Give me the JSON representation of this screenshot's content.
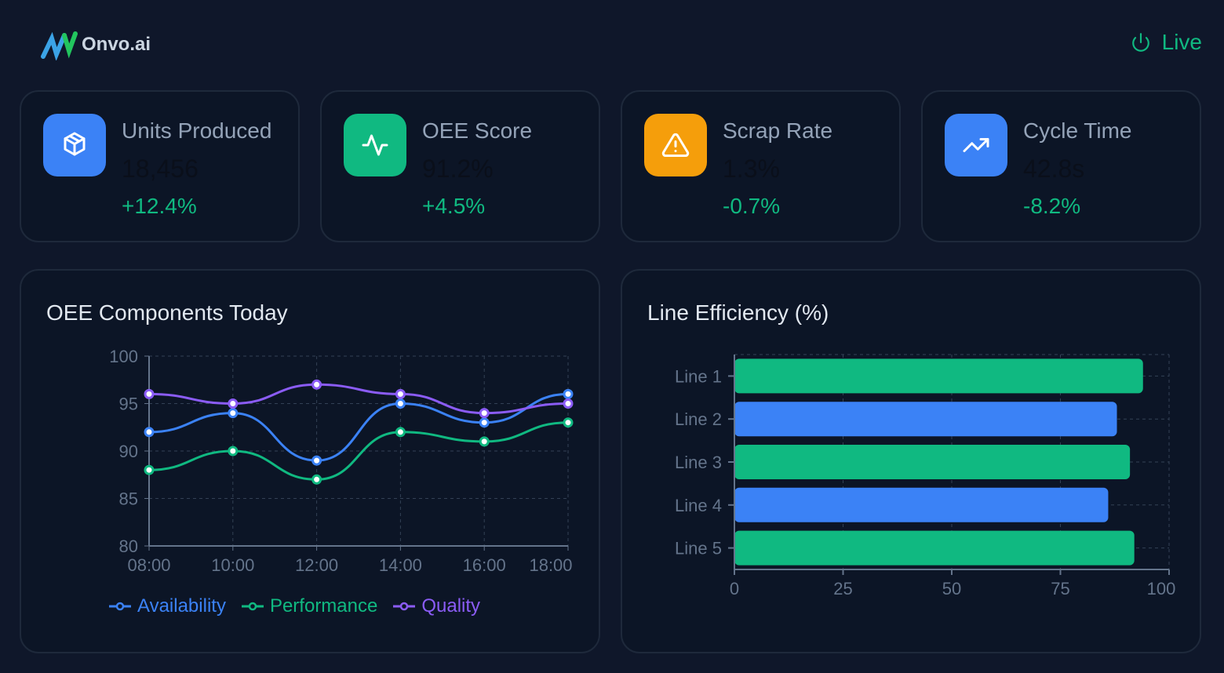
{
  "brand": {
    "name": "Onvo.ai"
  },
  "status": {
    "label": "Live",
    "icon": "power-icon"
  },
  "kpis": [
    {
      "label": "Units Produced",
      "value": "18,456",
      "change": "+12.4%",
      "icon": "box-icon",
      "color": "#3b82f6"
    },
    {
      "label": "OEE Score",
      "value": "91.2%",
      "change": "+4.5%",
      "icon": "activity-icon",
      "color": "#10b981"
    },
    {
      "label": "Scrap Rate",
      "value": "1.3%",
      "change": "-0.7%",
      "icon": "warning-icon",
      "color": "#f59e0b"
    },
    {
      "label": "Cycle Time",
      "value": "42.8s",
      "change": "-8.2%",
      "icon": "trending-up-icon",
      "color": "#3b82f6"
    }
  ],
  "chart_data": [
    {
      "type": "line",
      "title": "OEE Components Today",
      "x": [
        "08:00",
        "10:00",
        "12:00",
        "14:00",
        "16:00",
        "18:00"
      ],
      "ylim": [
        80,
        100
      ],
      "yticks": [
        80,
        85,
        90,
        95,
        100
      ],
      "grid": true,
      "legend": "bottom",
      "series": [
        {
          "name": "Availability",
          "color": "#3b82f6",
          "values": [
            92,
            94,
            89,
            95,
            93,
            96
          ]
        },
        {
          "name": "Performance",
          "color": "#10b981",
          "values": [
            88,
            90,
            87,
            92,
            91,
            93
          ]
        },
        {
          "name": "Quality",
          "color": "#8b5cf6",
          "values": [
            96,
            95,
            97,
            96,
            94,
            95
          ]
        }
      ]
    },
    {
      "type": "bar",
      "orientation": "horizontal",
      "title": "Line Efficiency (%)",
      "categories": [
        "Line 1",
        "Line 2",
        "Line 3",
        "Line 4",
        "Line 5"
      ],
      "values": [
        94,
        88,
        91,
        86,
        92
      ],
      "colors": [
        "#10b981",
        "#3b82f6",
        "#10b981",
        "#3b82f6",
        "#10b981"
      ],
      "xlim": [
        0,
        100
      ],
      "xticks": [
        0,
        25,
        50,
        75,
        100
      ],
      "grid": true
    }
  ]
}
